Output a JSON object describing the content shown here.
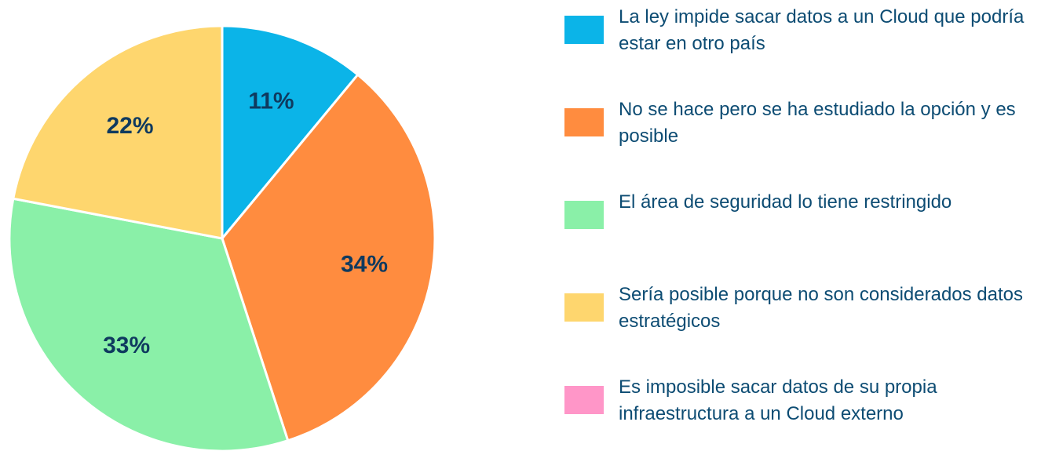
{
  "chart_data": {
    "type": "pie",
    "categories": [
      "La ley impide sacar datos a un Cloud que podría estar en otro país",
      "No se hace pero se ha estudiado la opción y es posible",
      "El área de seguridad lo tiene restringido",
      "Sería posible porque no son considerados datos estratégicos",
      "Es imposible sacar datos de su propia infraestructura a un Cloud externo"
    ],
    "values": [
      11,
      34,
      33,
      22,
      0
    ],
    "value_labels": [
      "11%",
      "34%",
      "33%",
      "22%",
      null
    ],
    "colors": [
      "#0bb4e8",
      "#ff8c3f",
      "#8af0a8",
      "#fed66e",
      "#ff96c8"
    ],
    "legend": "right"
  }
}
